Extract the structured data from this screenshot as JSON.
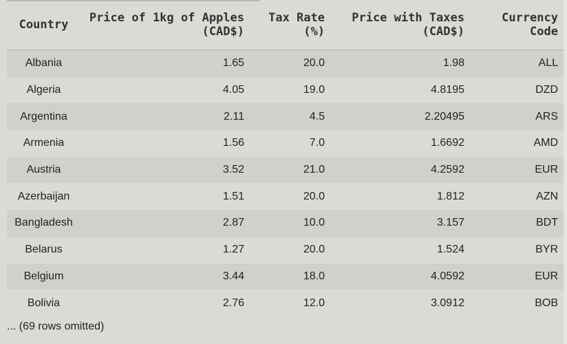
{
  "table": {
    "headers": {
      "country": [
        "Country"
      ],
      "price": [
        "Price of 1kg of Apples",
        "(CAD$)"
      ],
      "tax": [
        "Tax Rate",
        "(%)"
      ],
      "price_taxes": [
        "Price with Taxes",
        "(CAD$)"
      ],
      "currency": [
        "Currency",
        "Code"
      ]
    },
    "rows": [
      {
        "country": "Albania",
        "price": "1.65",
        "tax": "20.0",
        "price_taxes": "1.98",
        "currency": "ALL"
      },
      {
        "country": "Algeria",
        "price": "4.05",
        "tax": "19.0",
        "price_taxes": "4.8195",
        "currency": "DZD"
      },
      {
        "country": "Argentina",
        "price": "2.11",
        "tax": "4.5",
        "price_taxes": "2.20495",
        "currency": "ARS"
      },
      {
        "country": "Armenia",
        "price": "1.56",
        "tax": "7.0",
        "price_taxes": "1.6692",
        "currency": "AMD"
      },
      {
        "country": "Austria",
        "price": "3.52",
        "tax": "21.0",
        "price_taxes": "4.2592",
        "currency": "EUR"
      },
      {
        "country": "Azerbaijan",
        "price": "1.51",
        "tax": "20.0",
        "price_taxes": "1.812",
        "currency": "AZN"
      },
      {
        "country": "Bangladesh",
        "price": "2.87",
        "tax": "10.0",
        "price_taxes": "3.157",
        "currency": "BDT"
      },
      {
        "country": "Belarus",
        "price": "1.27",
        "tax": "20.0",
        "price_taxes": "1.524",
        "currency": "BYR"
      },
      {
        "country": "Belgium",
        "price": "3.44",
        "tax": "18.0",
        "price_taxes": "4.0592",
        "currency": "EUR"
      },
      {
        "country": "Bolivia",
        "price": "2.76",
        "tax": "12.0",
        "price_taxes": "3.0912",
        "currency": "BOB"
      }
    ],
    "footer": "... (69 rows omitted)"
  }
}
